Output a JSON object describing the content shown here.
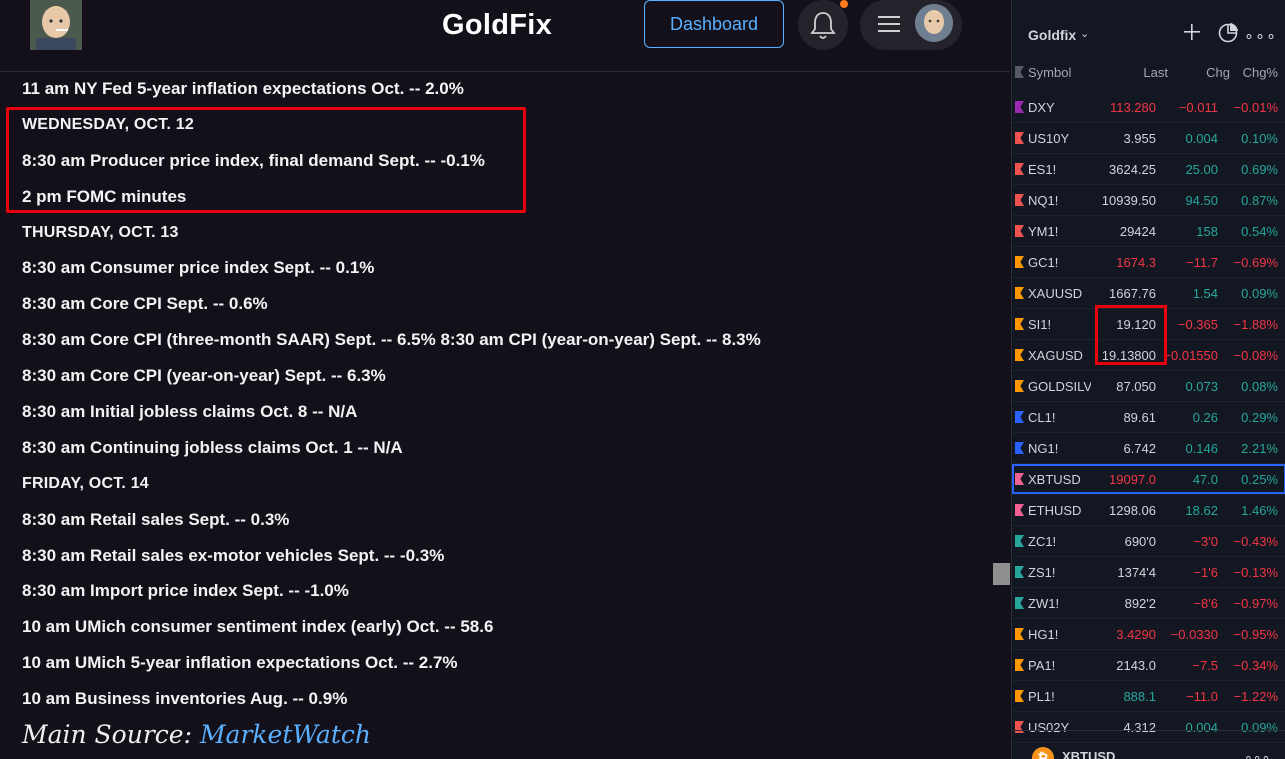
{
  "header": {
    "site_title": "GoldFix",
    "dashboard_label": "Dashboard"
  },
  "calendar": [
    {
      "text": "11 am NY Fed 5-year inflation expectations Oct. -- 2.0%",
      "type": "item"
    },
    {
      "text": "WEDNESDAY, OCT. 12",
      "type": "head"
    },
    {
      "text": "8:30 am Producer price index, final demand Sept. -- -0.1%",
      "type": "item"
    },
    {
      "text": "2 pm FOMC minutes",
      "type": "item"
    },
    {
      "text": "THURSDAY, OCT. 13",
      "type": "head"
    },
    {
      "text": "8:30 am Consumer price index Sept. -- 0.1%",
      "type": "item"
    },
    {
      "text": "8:30 am Core CPI Sept. -- 0.6%",
      "type": "item"
    },
    {
      "text": "8:30 am Core CPI (three-month SAAR) Sept. -- 6.5% 8:30 am CPI (year-on-year) Sept. -- 8.3%",
      "type": "item"
    },
    {
      "text": "8:30 am Core CPI (year-on-year) Sept. -- 6.3%",
      "type": "item"
    },
    {
      "text": "8:30 am Initial jobless claims Oct. 8 -- N/A",
      "type": "item"
    },
    {
      "text": "8:30 am Continuing jobless claims Oct. 1 -- N/A",
      "type": "item"
    },
    {
      "text": "FRIDAY, OCT. 14",
      "type": "head"
    },
    {
      "text": "8:30 am Retail sales Sept. -- 0.3%",
      "type": "item"
    },
    {
      "text": "8:30 am Retail sales ex-motor vehicles Sept. -- -0.3%",
      "type": "item"
    },
    {
      "text": "8:30 am Import price index Sept. -- -1.0%",
      "type": "item"
    },
    {
      "text": "10 am UMich consumer sentiment index (early) Oct. -- 58.6",
      "type": "item"
    },
    {
      "text": "10 am UMich 5-year inflation expectations Oct. -- 2.7%",
      "type": "item"
    },
    {
      "text": "10 am Business inventories Aug. -- 0.9%",
      "type": "item"
    }
  ],
  "source": {
    "prefix": "Main Source: ",
    "link": "MarketWatch"
  },
  "watchlist": {
    "name": "Goldfix",
    "caret": "⌄",
    "more": "∘∘∘",
    "columns": {
      "symbol": "Symbol",
      "last": "Last",
      "chg": "Chg",
      "chgp": "Chg%"
    },
    "rows": [
      {
        "symbol": "DXY",
        "last": "113.280",
        "chg": "−0.011",
        "chgp": "−0.01%",
        "flag": "#9c27b0",
        "dir": "dn",
        "lastColor": "dn"
      },
      {
        "symbol": "US10Y",
        "last": "3.955",
        "chg": "0.004",
        "chgp": "0.10%",
        "flag": "#ef5350",
        "dir": "up",
        "lastColor": "wh"
      },
      {
        "symbol": "ES1!",
        "last": "3624.25",
        "chg": "25.00",
        "chgp": "0.69%",
        "flag": "#ef5350",
        "dir": "up",
        "lastColor": "wh"
      },
      {
        "symbol": "NQ1!",
        "last": "10939.50",
        "chg": "94.50",
        "chgp": "0.87%",
        "flag": "#ef5350",
        "dir": "up",
        "lastColor": "wh"
      },
      {
        "symbol": "YM1!",
        "last": "29424",
        "chg": "158",
        "chgp": "0.54%",
        "flag": "#ef5350",
        "dir": "up",
        "lastColor": "wh"
      },
      {
        "symbol": "GC1!",
        "last": "1674.3",
        "chg": "−11.7",
        "chgp": "−0.69%",
        "flag": "#ff9800",
        "dir": "dn",
        "lastColor": "dn"
      },
      {
        "symbol": "XAUUSD",
        "last": "1667.76",
        "chg": "1.54",
        "chgp": "0.09%",
        "flag": "#ff9800",
        "dir": "up",
        "lastColor": "wh"
      },
      {
        "symbol": "SI1!",
        "last": "19.120",
        "chg": "−0.365",
        "chgp": "−1.88%",
        "flag": "#ff9800",
        "dir": "dn",
        "lastColor": "wh"
      },
      {
        "symbol": "XAGUSD",
        "last": "19.13800",
        "chg": "−0.01550",
        "chgp": "−0.08%",
        "flag": "#ff9800",
        "dir": "dn",
        "lastColor": "wh"
      },
      {
        "symbol": "GOLDSILVER",
        "last": "87.050",
        "chg": "0.073",
        "chgp": "0.08%",
        "flag": "#ff9800",
        "dir": "up",
        "lastColor": "wh"
      },
      {
        "symbol": "CL1!",
        "last": "89.61",
        "chg": "0.26",
        "chgp": "0.29%",
        "flag": "#2962ff",
        "dir": "up",
        "lastColor": "wh"
      },
      {
        "symbol": "NG1!",
        "last": "6.742",
        "chg": "0.146",
        "chgp": "2.21%",
        "flag": "#2962ff",
        "dir": "up",
        "lastColor": "wh"
      },
      {
        "symbol": "XBTUSD",
        "last": "19097.0",
        "chg": "47.0",
        "chgp": "0.25%",
        "flag": "#f06292",
        "dir": "up",
        "lastColor": "dn",
        "selected": true
      },
      {
        "symbol": "ETHUSD",
        "last": "1298.06",
        "chg": "18.62",
        "chgp": "1.46%",
        "flag": "#f06292",
        "dir": "up",
        "lastColor": "wh"
      },
      {
        "symbol": "ZC1!",
        "last": "690'0",
        "chg": "−3'0",
        "chgp": "−0.43%",
        "flag": "#26a69a",
        "dir": "dn",
        "lastColor": "wh"
      },
      {
        "symbol": "ZS1!",
        "last": "1374'4",
        "chg": "−1'6",
        "chgp": "−0.13%",
        "flag": "#26a69a",
        "dir": "dn",
        "lastColor": "wh"
      },
      {
        "symbol": "ZW1!",
        "last": "892'2",
        "chg": "−8'6",
        "chgp": "−0.97%",
        "flag": "#26a69a",
        "dir": "dn",
        "lastColor": "wh"
      },
      {
        "symbol": "HG1!",
        "last": "3.4290",
        "chg": "−0.0330",
        "chgp": "−0.95%",
        "flag": "#ff9800",
        "dir": "dn",
        "lastColor": "dn"
      },
      {
        "symbol": "PA1!",
        "last": "2143.0",
        "chg": "−7.5",
        "chgp": "−0.34%",
        "flag": "#ff9800",
        "dir": "dn",
        "lastColor": "wh"
      },
      {
        "symbol": "PL1!",
        "last": "888.1",
        "chg": "−11.0",
        "chgp": "−1.22%",
        "flag": "#ff9800",
        "dir": "dn",
        "lastColor": "up"
      },
      {
        "symbol": "US02Y",
        "last": "4.312",
        "chg": "0.004",
        "chgp": "0.09%",
        "flag": "#ef5350",
        "dir": "up",
        "lastColor": "wh"
      }
    ],
    "bottom_symbol": "XBTUSD",
    "bottom_icon": "₿",
    "bottom_more": "∘∘∘"
  }
}
